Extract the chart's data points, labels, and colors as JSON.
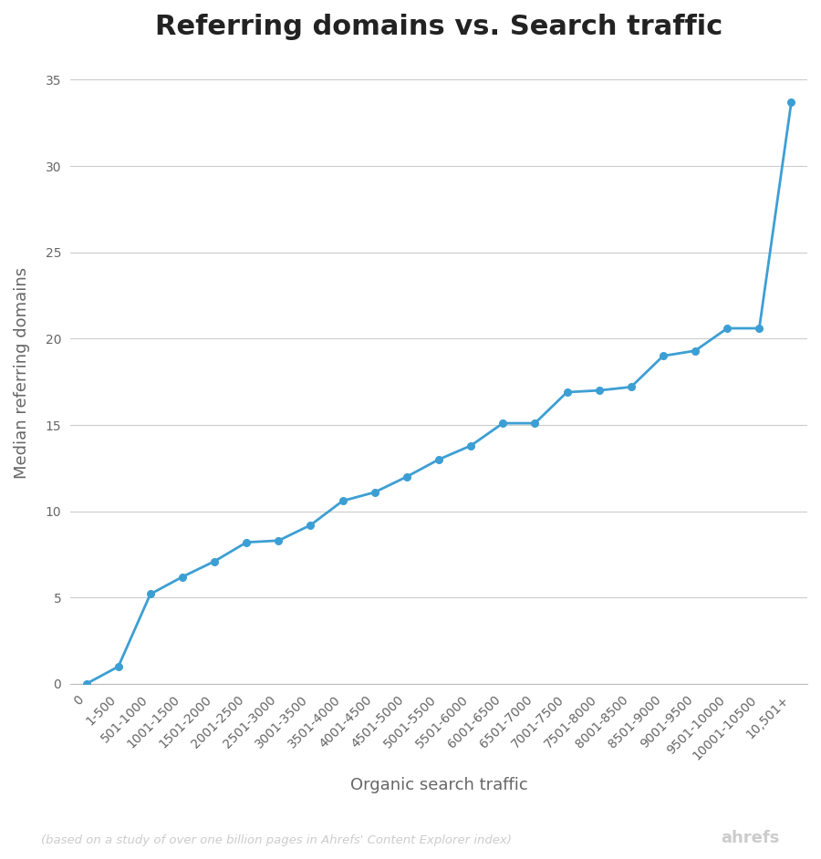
{
  "title": "Referring domains vs. Search traffic",
  "xlabel": "Organic search traffic",
  "ylabel": "Median referring domains",
  "categories": [
    "0",
    "1-500",
    "501-1000",
    "1001-1500",
    "1501-2000",
    "2001-2500",
    "2501-3000",
    "3001-3500",
    "3501-4000",
    "4001-4500",
    "4501-5000",
    "5001-5500",
    "5501-6000",
    "6001-6500",
    "6501-7000",
    "7001-7500",
    "7501-8000",
    "8001-8500",
    "8501-9000",
    "9001-9500",
    "9501-10000",
    "10001-10500",
    "10,501+"
  ],
  "values": [
    0,
    1,
    5.2,
    6.2,
    7.1,
    8.2,
    8.3,
    9.2,
    10.6,
    11.1,
    12.0,
    13.0,
    13.8,
    15.1,
    15.1,
    16.9,
    17.0,
    17.2,
    19.0,
    19.3,
    20.6,
    20.6,
    33.7
  ],
  "line_color": "#3c9fd4",
  "marker_color": "#3c9fd4",
  "bg_color": "#ffffff",
  "grid_color": "#cccccc",
  "title_fontsize": 22,
  "label_fontsize": 13,
  "tick_fontsize": 10,
  "footer_text": "(based on a study of over one billion pages in Ahrefs' Content Explorer index)",
  "footer_right": "ahrefs",
  "footer_color": "#cccccc",
  "ylim": [
    0,
    36
  ],
  "yticks": [
    0,
    5,
    10,
    15,
    20,
    25,
    30,
    35
  ]
}
